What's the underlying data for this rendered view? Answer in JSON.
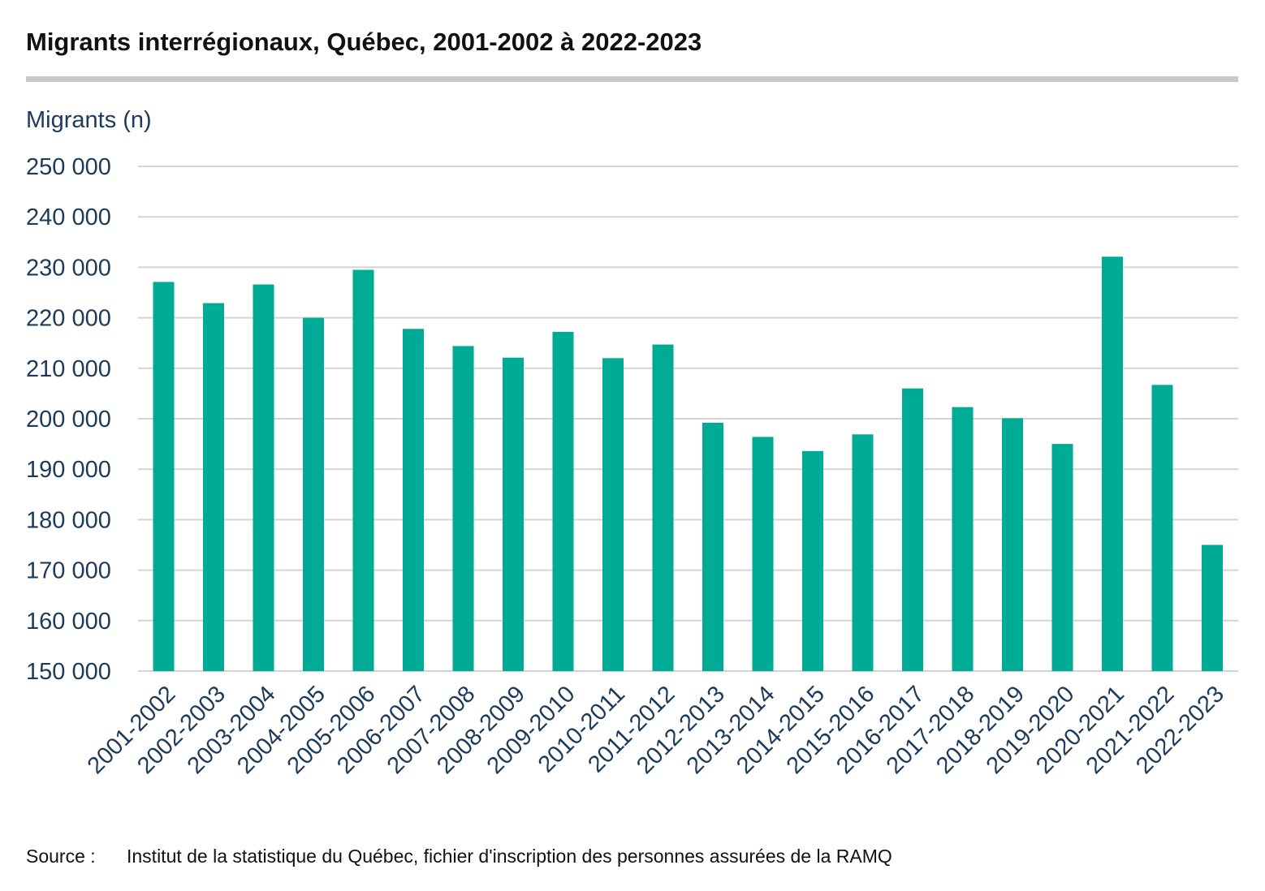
{
  "title": "Migrants interrégionaux, Québec, 2001-2002 à 2022-2023",
  "source": {
    "label": "Source :",
    "text": "Institut de la statistique du Québec, fichier d'inscription des personnes assurées de la RAMQ"
  },
  "colors": {
    "bar": "#00ab96",
    "grid": "#d4d4d4",
    "axis_text": "#1c3a5a"
  },
  "chart_data": {
    "type": "bar",
    "title": "Migrants interrégionaux, Québec, 2001-2002 à 2022-2023",
    "ylabel": "Migrants (n)",
    "xlabel": "",
    "ylim": [
      150000,
      250000
    ],
    "yticks": [
      150000,
      160000,
      170000,
      180000,
      190000,
      200000,
      210000,
      220000,
      230000,
      240000,
      250000
    ],
    "ytick_labels": [
      "150 000",
      "160 000",
      "170 000",
      "180 000",
      "190 000",
      "200 000",
      "210 000",
      "220 000",
      "230 000",
      "240 000",
      "250 000"
    ],
    "grid": true,
    "legend": "none",
    "categories": [
      "2001-2002",
      "2002-2003",
      "2003-2004",
      "2004-2005",
      "2005-2006",
      "2006-2007",
      "2007-2008",
      "2008-2009",
      "2009-2010",
      "2010-2011",
      "2011-2012",
      "2012-2013",
      "2013-2014",
      "2014-2015",
      "2015-2016",
      "2016-2017",
      "2017-2018",
      "2018-2019",
      "2019-2020",
      "2020-2021",
      "2021-2022",
      "2022-2023"
    ],
    "values": [
      227100,
      222900,
      226600,
      220000,
      229500,
      217800,
      214400,
      212100,
      217200,
      212000,
      214700,
      199200,
      196400,
      193600,
      196900,
      206000,
      202300,
      200100,
      195000,
      232100,
      206700,
      175000
    ]
  }
}
